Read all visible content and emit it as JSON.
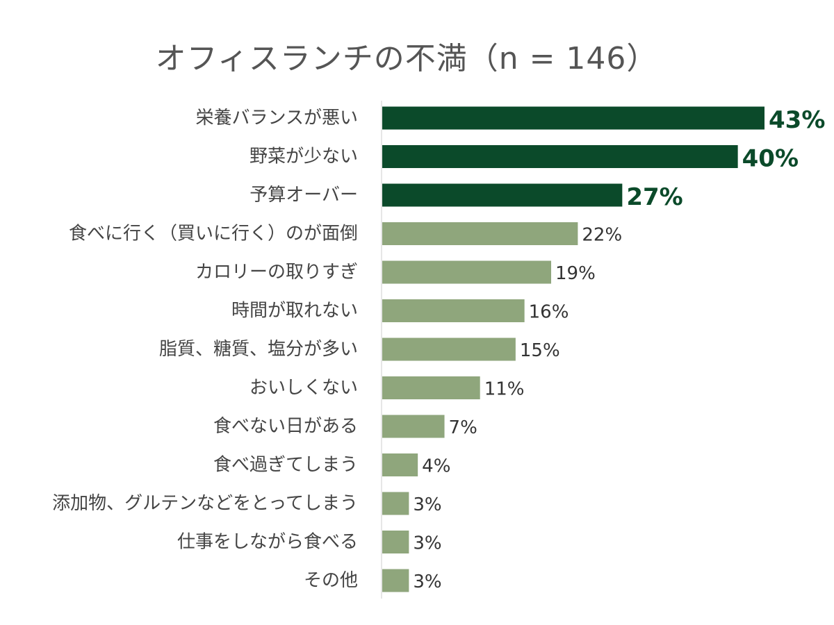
{
  "chart_data": {
    "type": "bar",
    "orientation": "horizontal",
    "title": "オフィスランチの不満（n = 146）",
    "xlabel": "",
    "ylabel": "",
    "xlim": [
      0,
      43
    ],
    "grid": false,
    "categories": [
      "栄養バランスが悪い",
      "野菜が少ない",
      "予算オーバー",
      "食べに行く（買いに行く）のが面倒",
      "カロリーの取りすぎ",
      "時間が取れない",
      "脂質、糖質、塩分が多い",
      "おいしくない",
      "食べない日がある",
      "食べ過ぎてしまう",
      "添加物、グルテンなどをとってしまう",
      "仕事をしながら食べる",
      "その他"
    ],
    "values": [
      43,
      40,
      27,
      22,
      19,
      16,
      15,
      11,
      7,
      4,
      3,
      3,
      3
    ],
    "value_labels": [
      "43%",
      "40%",
      "27%",
      "22%",
      "19%",
      "16%",
      "15%",
      "11%",
      "7%",
      "4%",
      "3%",
      "3%",
      "3%"
    ],
    "highlighted": [
      true,
      true,
      true,
      false,
      false,
      false,
      false,
      false,
      false,
      false,
      false,
      false,
      false
    ],
    "colors": {
      "highlight_bar": "#0b4a2a",
      "normal_bar": "#8fa67c",
      "highlight_label": "#0b4a2a",
      "normal_label": "#333333",
      "category_label": "#444444",
      "axis": "#dddddd",
      "title": "#555555"
    }
  }
}
